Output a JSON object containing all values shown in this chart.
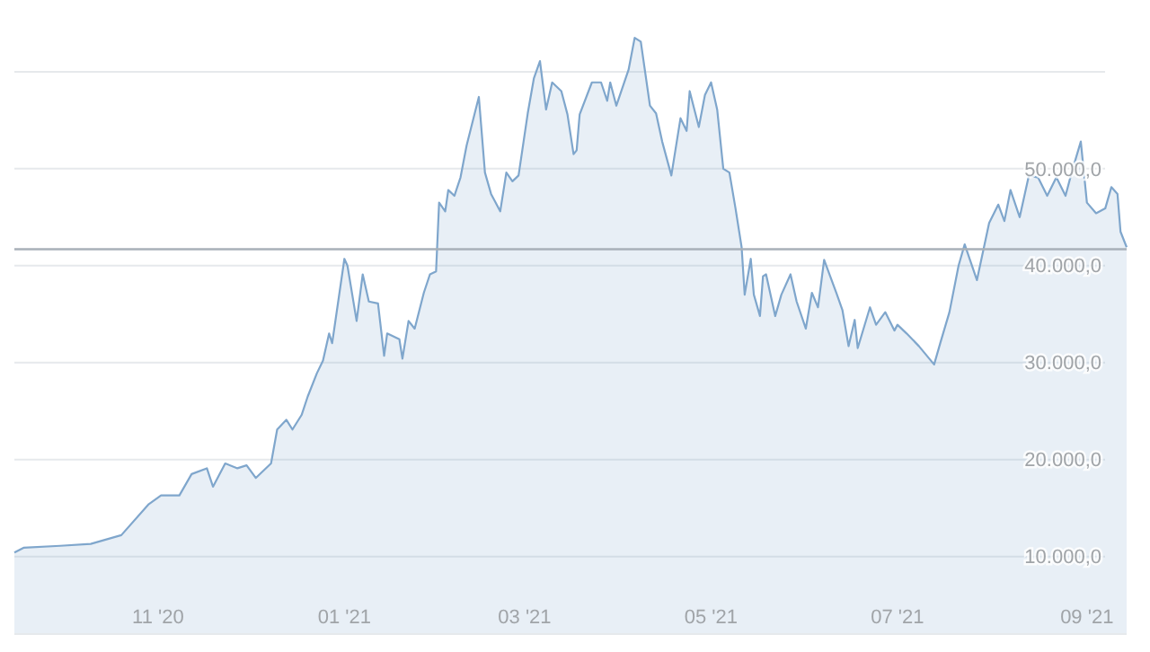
{
  "chart_data": {
    "type": "area",
    "grid": "y",
    "x": [
      "2020-09-15",
      "2020-09-18",
      "2020-09-30",
      "2020-10-10",
      "2020-10-20",
      "2020-10-29",
      "2020-11-02",
      "2020-11-08",
      "2020-11-12",
      "2020-11-17",
      "2020-11-19",
      "2020-11-23",
      "2020-11-27",
      "2020-11-30",
      "2020-12-03",
      "2020-12-08",
      "2020-12-10",
      "2020-12-13",
      "2020-12-15",
      "2020-12-18",
      "2020-12-20",
      "2020-12-23",
      "2020-12-25",
      "2020-12-27",
      "2020-12-28",
      "2021-01-01",
      "2021-01-02",
      "2021-01-05",
      "2021-01-07",
      "2021-01-09",
      "2021-01-12",
      "2021-01-14",
      "2021-01-15",
      "2021-01-19",
      "2021-01-20",
      "2021-01-22",
      "2021-01-24",
      "2021-01-27",
      "2021-01-29",
      "2021-01-31",
      "2021-02-01",
      "2021-02-03",
      "2021-02-04",
      "2021-02-06",
      "2021-02-08",
      "2021-02-10",
      "2021-02-14",
      "2021-02-16",
      "2021-02-18",
      "2021-02-21",
      "2021-02-23",
      "2021-02-25",
      "2021-02-27",
      "2021-03-02",
      "2021-03-04",
      "2021-03-06",
      "2021-03-08",
      "2021-03-10",
      "2021-03-13",
      "2021-03-15",
      "2021-03-17",
      "2021-03-18",
      "2021-03-19",
      "2021-03-23",
      "2021-03-26",
      "2021-03-28",
      "2021-03-29",
      "2021-03-31",
      "2021-04-04",
      "2021-04-06",
      "2021-04-08",
      "2021-04-11",
      "2021-04-13",
      "2021-04-15",
      "2021-04-18",
      "2021-04-21",
      "2021-04-23",
      "2021-04-24",
      "2021-04-27",
      "2021-04-29",
      "2021-05-01",
      "2021-05-03",
      "2021-05-05",
      "2021-05-07",
      "2021-05-09",
      "2021-05-11",
      "2021-05-12",
      "2021-05-14",
      "2021-05-15",
      "2021-05-17",
      "2021-05-18",
      "2021-05-19",
      "2021-05-22",
      "2021-05-24",
      "2021-05-27",
      "2021-05-29",
      "2021-06-01",
      "2021-06-03",
      "2021-06-05",
      "2021-06-07",
      "2021-06-11",
      "2021-06-13",
      "2021-06-15",
      "2021-06-17",
      "2021-06-18",
      "2021-06-22",
      "2021-06-24",
      "2021-06-27",
      "2021-06-30",
      "2021-07-01",
      "2021-07-04",
      "2021-07-08",
      "2021-07-13",
      "2021-07-15",
      "2021-07-18",
      "2021-07-21",
      "2021-07-23",
      "2021-07-27",
      "2021-07-31",
      "2021-08-03",
      "2021-08-05",
      "2021-08-07",
      "2021-08-10",
      "2021-08-13",
      "2021-08-16",
      "2021-08-19",
      "2021-08-22",
      "2021-08-25",
      "2021-08-27",
      "2021-08-30",
      "2021-09-01",
      "2021-09-04",
      "2021-09-07",
      "2021-09-09",
      "2021-09-11",
      "2021-09-12",
      "2021-09-14"
    ],
    "series": [
      {
        "color": "#7fa6cc",
        "values": [
          10400,
          10900,
          11100,
          11300,
          12200,
          15400,
          16300,
          16300,
          18500,
          19100,
          17200,
          19600,
          19100,
          19400,
          18100,
          19600,
          23100,
          24100,
          23100,
          24600,
          26500,
          28900,
          30200,
          33000,
          32000,
          40700,
          40000,
          34300,
          39100,
          36300,
          36100,
          30700,
          33000,
          32400,
          30400,
          34300,
          33500,
          37200,
          39100,
          39400,
          46500,
          45600,
          47800,
          47200,
          49100,
          52400,
          57400,
          49600,
          47400,
          45600,
          49600,
          48700,
          49300,
          55700,
          59300,
          61100,
          56100,
          58900,
          58000,
          55600,
          51500,
          51900,
          55600,
          58900,
          58900,
          57000,
          58900,
          56500,
          60200,
          63500,
          63100,
          56500,
          55700,
          52800,
          49300,
          55200,
          53900,
          58000,
          54300,
          57600,
          58900,
          56100,
          50000,
          49600,
          45900,
          41900,
          37000,
          40700,
          37000,
          34800,
          38900,
          39100,
          34800,
          37000,
          39100,
          36300,
          33500,
          37200,
          35700,
          40600,
          37200,
          35400,
          31700,
          34400,
          31500,
          35700,
          33900,
          35200,
          33300,
          33900,
          33000,
          31700,
          29800,
          32000,
          35200,
          40000,
          42200,
          38500,
          44400,
          46300,
          44600,
          47800,
          45000,
          49300,
          49100,
          47200,
          49100,
          47200,
          49600,
          52800,
          46500,
          45400,
          45900,
          48100,
          47400,
          43500,
          41900
        ]
      }
    ],
    "xlim": [
      "2020-09-15",
      "2021-09-14"
    ],
    "xticks": [
      {
        "value": "2020-11-01",
        "label": "11 '20"
      },
      {
        "value": "2021-01-01",
        "label": "01 '21"
      },
      {
        "value": "2021-03-01",
        "label": "03 '21"
      },
      {
        "value": "2021-05-01",
        "label": "05 '21"
      },
      {
        "value": "2021-07-01",
        "label": "07 '21"
      },
      {
        "value": "2021-09-01",
        "label": "09 '21"
      }
    ],
    "ylim": [
      2000,
      67400
    ],
    "yticks": [
      {
        "value": 10000,
        "label": "10.000,0"
      },
      {
        "value": 20000,
        "label": "20.000,0"
      },
      {
        "value": 30000,
        "label": "30.000,0"
      },
      {
        "value": 40000,
        "label": "40.000,0"
      },
      {
        "value": 50000,
        "label": "50.000,0"
      },
      {
        "value": 60000,
        "label": null
      }
    ],
    "ref_lines": [
      {
        "axis": "y",
        "value": 41700,
        "color": "#a8b0b8"
      }
    ]
  }
}
